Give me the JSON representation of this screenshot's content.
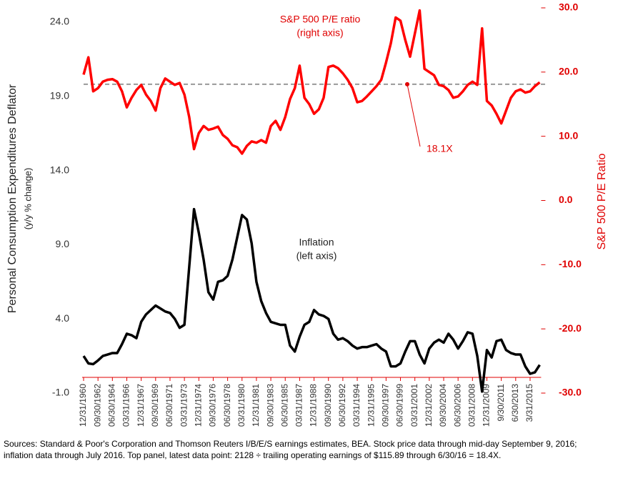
{
  "chart_data": {
    "type": "line",
    "y_label": [
      "Personal Consumption Expenditures Deflator",
      "(y/y % change)"
    ],
    "y2_label": "S&P 500 P/E Ratio",
    "categories": [
      "12/31/1960",
      null,
      null,
      "09/30/1962",
      null,
      null,
      "06/30/1964",
      null,
      null,
      "03/31/1966",
      null,
      null,
      "12/31/1967",
      null,
      null,
      "09/30/1969",
      null,
      null,
      "06/30/1971",
      null,
      null,
      "03/31/1973",
      null,
      null,
      "12/31/1974",
      null,
      null,
      "09/30/1976",
      null,
      null,
      "06/30/1978",
      null,
      null,
      "03/31/1980",
      null,
      null,
      "12/31/1981",
      null,
      null,
      "09/30/1983",
      null,
      null,
      "06/30/1985",
      null,
      null,
      "03/31/1987",
      null,
      null,
      "12/31/1988",
      null,
      null,
      "09/30/1990",
      null,
      null,
      "06/30/1992",
      null,
      null,
      "03/31/1994",
      null,
      null,
      "12/31/1995",
      null,
      null,
      "09/30/1997",
      null,
      null,
      "06/30/1999",
      null,
      null,
      "03/31/2001",
      null,
      null,
      "12/31/2002",
      null,
      null,
      "09/30/2004",
      null,
      null,
      "06/30/2006",
      null,
      null,
      "03/31/2008",
      null,
      null,
      "12/31/2009",
      null,
      null,
      "9/30/2011",
      null,
      null,
      "6/30/2013",
      null,
      null,
      "3/31/2015",
      null,
      null
    ],
    "series": [
      {
        "name": "S&P 500 P/E ratio",
        "note": "(right axis)",
        "color": "#ff0000",
        "axis": "y2",
        "values": [
          19.6,
          22.3,
          17.0,
          17.5,
          18.5,
          18.8,
          18.9,
          18.5,
          17.0,
          14.5,
          16.0,
          17.2,
          18.0,
          16.5,
          15.5,
          14.0,
          17.5,
          19.0,
          18.5,
          18.0,
          18.3,
          16.5,
          13.0,
          8.0,
          10.5,
          11.6,
          11.0,
          11.2,
          11.5,
          10.2,
          9.6,
          8.6,
          8.3,
          7.3,
          8.5,
          9.2,
          9.0,
          9.4,
          9.0,
          11.6,
          12.4,
          11.0,
          13.0,
          15.8,
          17.5,
          21.0,
          16.0,
          15.0,
          13.5,
          14.2,
          16.0,
          20.8,
          21.0,
          20.6,
          19.8,
          18.8,
          17.5,
          15.3,
          15.5,
          16.2,
          17.0,
          17.8,
          18.8,
          21.5,
          24.5,
          28.5,
          28.0,
          25.0,
          22.4,
          26.0,
          29.6,
          20.5,
          20.0,
          19.5,
          18.0,
          17.8,
          17.2,
          16.0,
          16.2,
          17.0,
          18.0,
          18.5,
          18.0,
          26.8,
          15.5,
          14.8,
          13.5,
          12.0,
          14.0,
          16.0,
          17.0,
          17.3,
          16.8,
          17.0,
          17.8,
          18.4
        ]
      },
      {
        "name": "Inflation",
        "note": "(left axis)",
        "color": "#000000",
        "axis": "y",
        "values": [
          1.5,
          1.0,
          0.95,
          1.2,
          1.5,
          1.6,
          1.7,
          1.7,
          2.3,
          3.0,
          2.9,
          2.7,
          3.8,
          4.3,
          4.6,
          4.9,
          4.7,
          4.5,
          4.4,
          4.0,
          3.4,
          3.6,
          7.5,
          11.4,
          9.8,
          8.0,
          5.8,
          5.3,
          6.5,
          6.6,
          6.9,
          8.0,
          9.5,
          11.0,
          10.7,
          9.1,
          6.5,
          5.2,
          4.4,
          3.8,
          3.7,
          3.6,
          3.6,
          2.2,
          1.8,
          2.8,
          3.6,
          3.8,
          4.6,
          4.3,
          4.2,
          4.0,
          3.0,
          2.6,
          2.7,
          2.5,
          2.2,
          2.0,
          2.1,
          2.1,
          2.2,
          2.3,
          2.0,
          1.8,
          0.8,
          0.8,
          1.0,
          1.8,
          2.5,
          2.5,
          1.6,
          1.0,
          2.0,
          2.4,
          2.6,
          2.4,
          3.0,
          2.6,
          2.0,
          2.5,
          3.1,
          3.0,
          1.5,
          -0.9,
          1.9,
          1.4,
          2.5,
          2.6,
          1.9,
          1.7,
          1.6,
          1.6,
          0.8,
          0.3,
          0.4,
          0.9
        ]
      }
    ],
    "average_line": {
      "value": 18.1,
      "label": "18.1X",
      "color": "#999999",
      "axis": "y2"
    },
    "ylim": [
      -1,
      24
    ],
    "yticks": [
      {
        "value": -1,
        "label": "-1.0"
      },
      {
        "value": 4,
        "label": "4.0"
      },
      {
        "value": 9,
        "label": "9.0"
      },
      {
        "value": 14,
        "label": "14.0"
      },
      {
        "value": 19,
        "label": "19.0"
      },
      {
        "value": 24,
        "label": "24.0"
      }
    ],
    "y2lim": [
      -30,
      30
    ],
    "y2ticks": [
      {
        "value": -30,
        "label": "-30.0"
      },
      {
        "value": -20,
        "label": "-20.0"
      },
      {
        "value": -10,
        "label": "-10.0"
      },
      {
        "value": 0,
        "label": "0.0"
      },
      {
        "value": 10,
        "label": "10.0"
      },
      {
        "value": 20,
        "label": "20.0"
      },
      {
        "value": 30,
        "label": "30.0"
      }
    ],
    "source": [
      "Sources: Standard & Poor's Corporation and Thomson Reuters I/B/E/S earnings estimates, BEA. Stock price data through mid-day September 9, 2016;",
      "inflation data through July 2016. Top panel, latest data point: 2128 ÷ trailing operating earnings of $115.89 through 6/30/16 = 18.4X."
    ]
  }
}
